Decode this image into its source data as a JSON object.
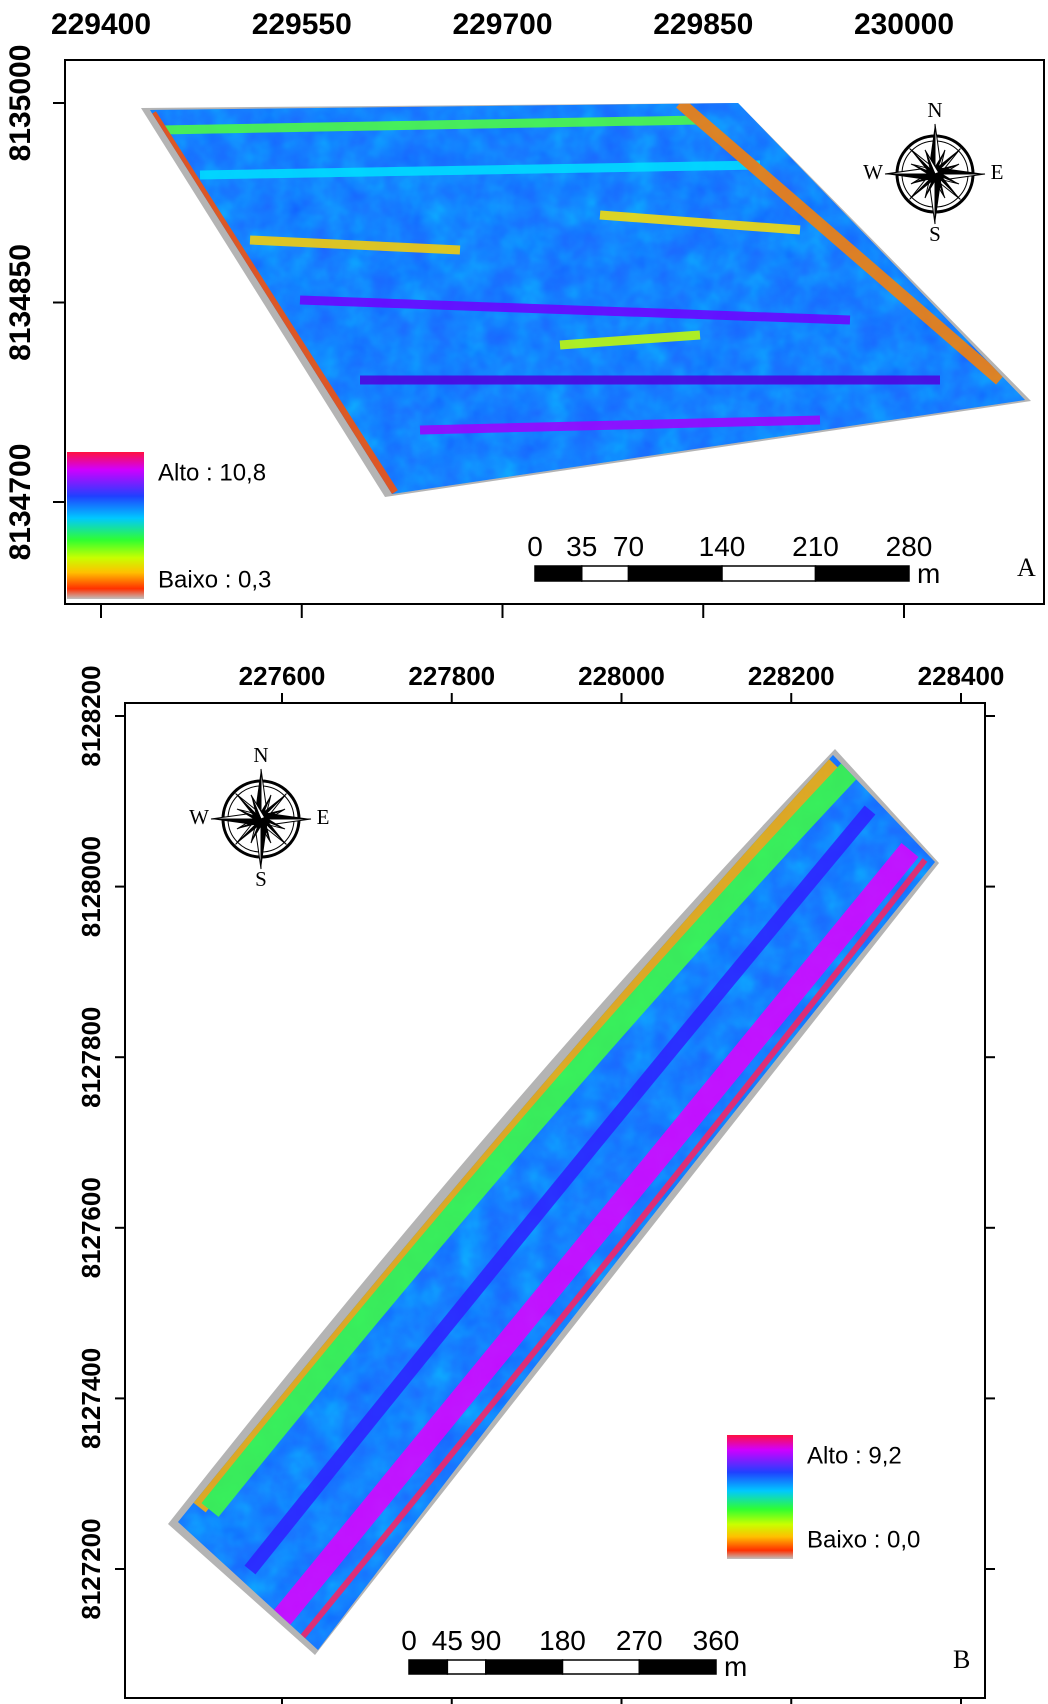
{
  "panels": [
    {
      "label": "A",
      "x_ticks": [
        229400,
        229550,
        229700,
        229850,
        230000
      ],
      "y_ticks": [
        8135000,
        8134850,
        8134700
      ],
      "legend": {
        "high": "Alto : 10,8",
        "low": "Baixo : 0,3"
      },
      "scale_bar": {
        "ticks": [
          0,
          35,
          70,
          140,
          210,
          280
        ],
        "unit": "m"
      },
      "compass": {
        "n": "N",
        "s": "S",
        "e": "E",
        "w": "W"
      }
    },
    {
      "label": "B",
      "x_ticks": [
        227600,
        227800,
        228000,
        228200,
        228400
      ],
      "y_ticks": [
        8128200,
        8128000,
        8127800,
        8127600,
        8127400,
        8127200
      ],
      "legend": {
        "high": "Alto : 9,2",
        "low": "Baixo : 0,0"
      },
      "scale_bar": {
        "ticks": [
          0,
          45,
          90,
          180,
          270,
          360
        ],
        "unit": "m"
      },
      "compass": {
        "n": "N",
        "s": "S",
        "e": "E",
        "w": "W"
      }
    }
  ]
}
